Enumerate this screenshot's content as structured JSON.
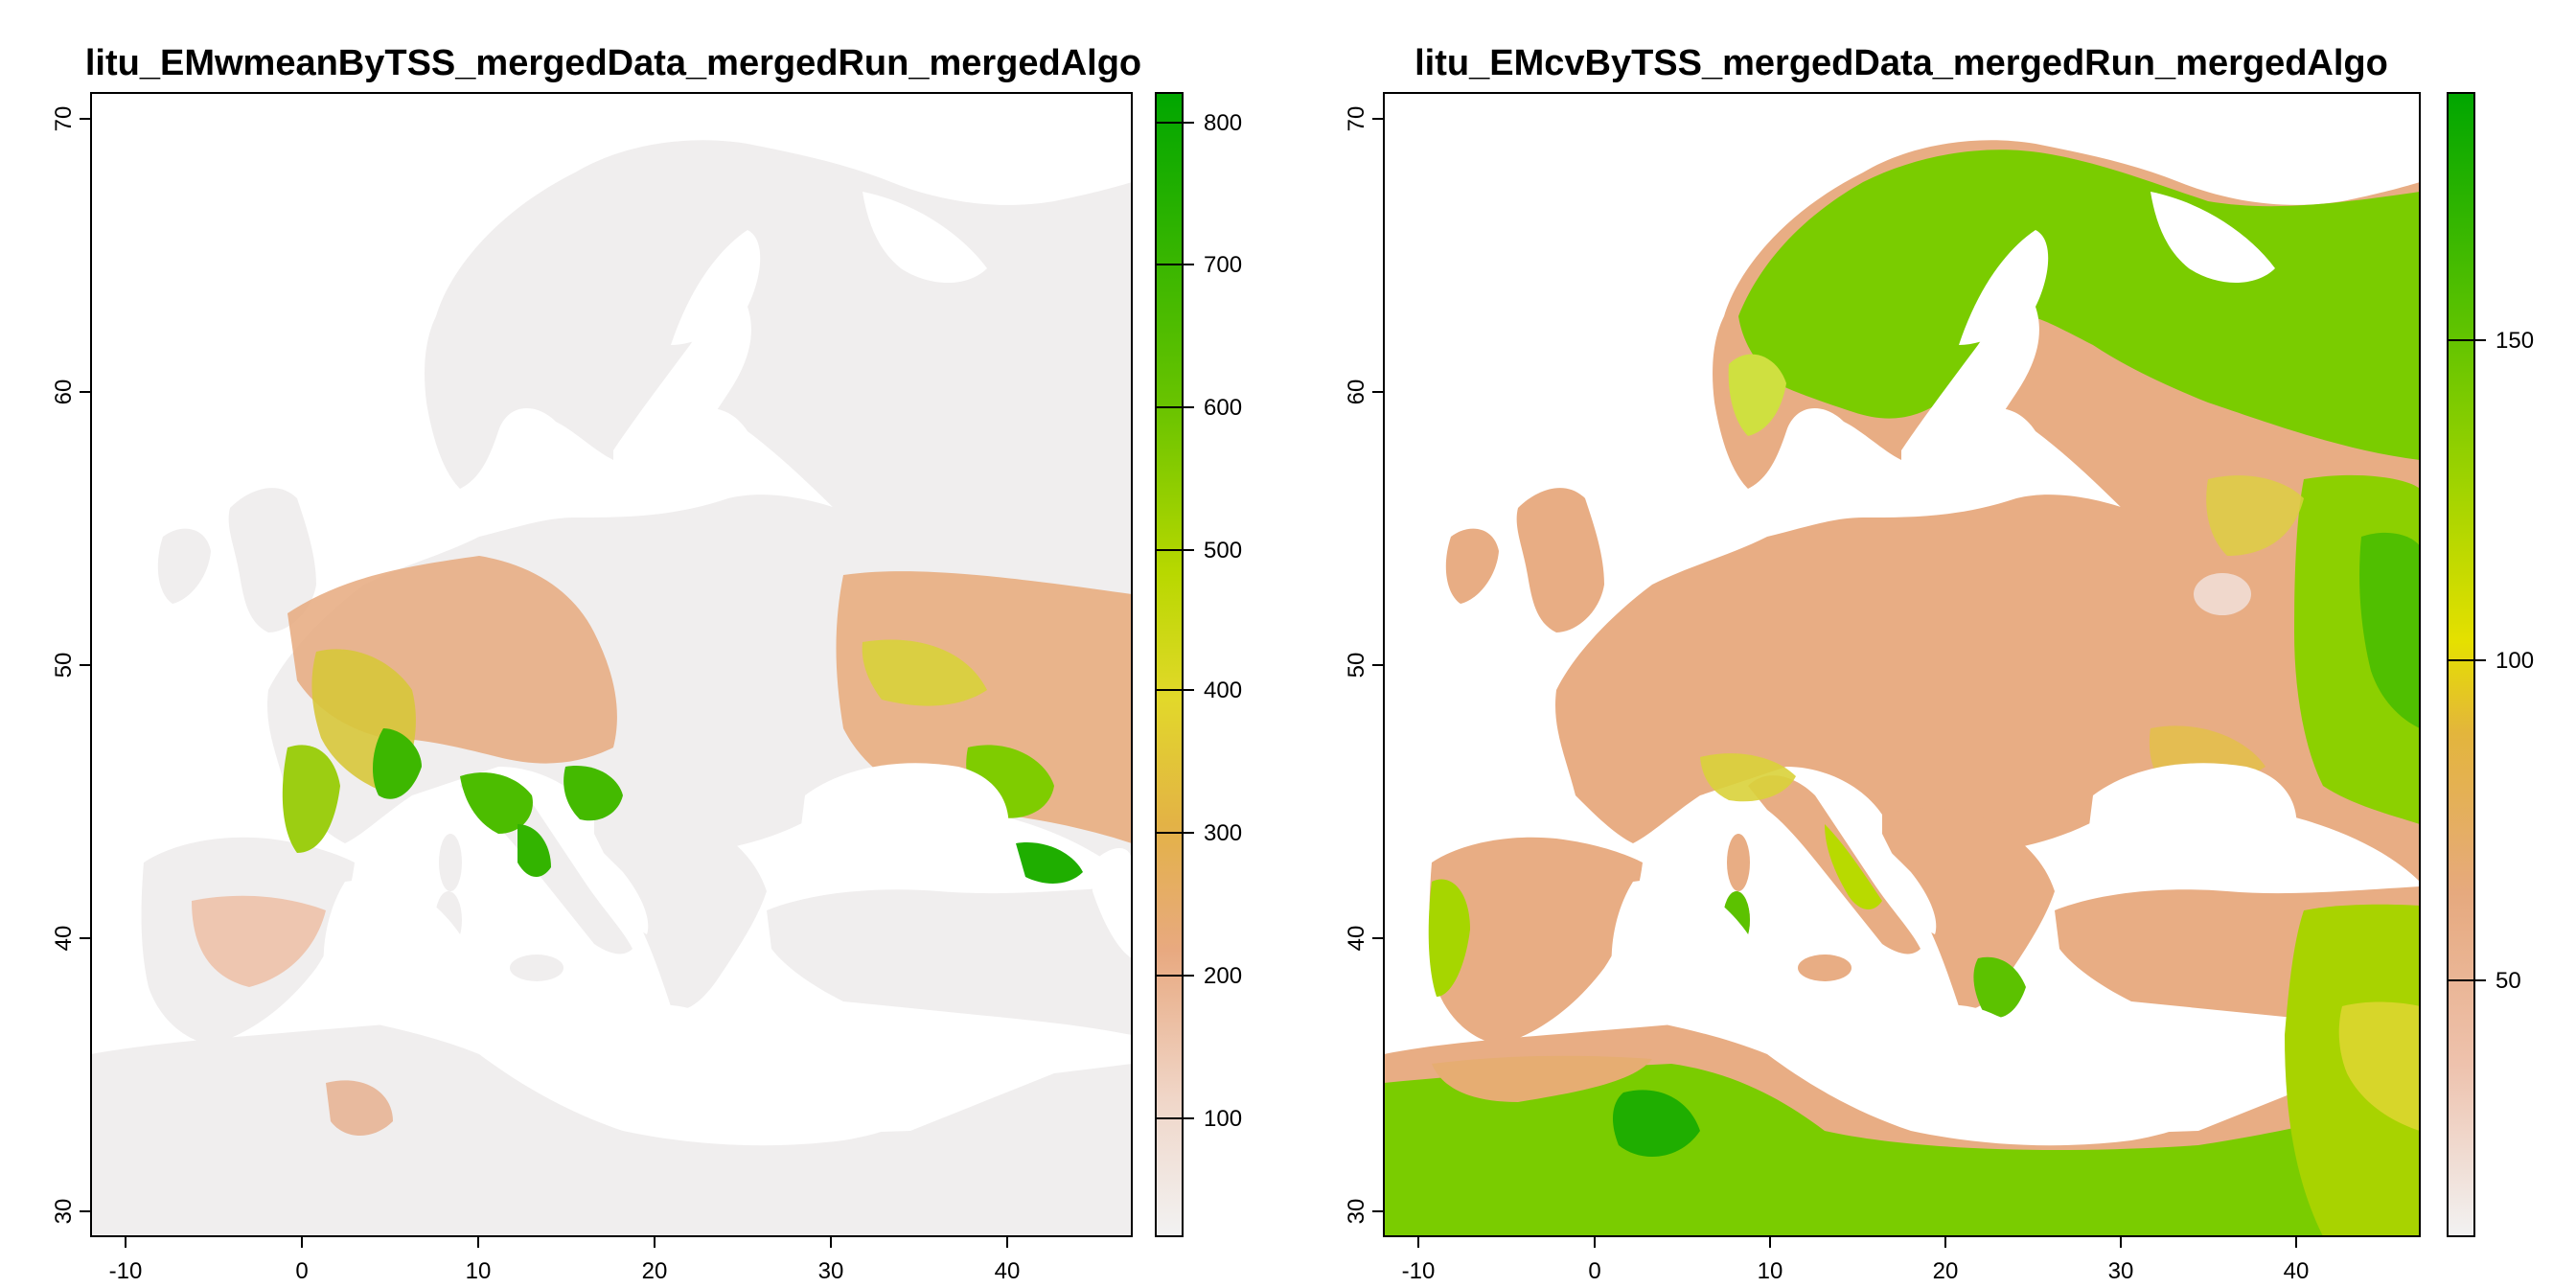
{
  "panels": [
    {
      "title": "litu_EMwmeanByTSS_mergedData_mergedRun_mergedAlgo",
      "x_ticks": [
        "-10",
        "0",
        "10",
        "20",
        "30",
        "40"
      ],
      "y_ticks": [
        "30",
        "40",
        "50",
        "60",
        "70"
      ],
      "legend_ticks": [
        "100",
        "200",
        "300",
        "400",
        "500",
        "600",
        "700",
        "800"
      ],
      "legend_range": [
        20,
        820
      ]
    },
    {
      "title": "litu_EMcvByTSS_mergedData_mergedRun_mergedAlgo",
      "x_ticks": [
        "-10",
        "0",
        "10",
        "20",
        "30",
        "40"
      ],
      "y_ticks": [
        "30",
        "40",
        "50",
        "60",
        "70"
      ],
      "legend_ticks": [
        "50",
        "100",
        "150"
      ],
      "legend_range": [
        5,
        190
      ]
    }
  ],
  "map_extent": {
    "lon": [
      -12,
      47
    ],
    "lat": [
      29,
      71
    ]
  },
  "colors": {
    "ramp": [
      "#f2f2f2",
      "#eec5b0",
      "#e6a97e",
      "#e3b94a",
      "#e6e600",
      "#8ad000",
      "#5cc200",
      "#00a600"
    ],
    "land_low": "#f0f0f0",
    "water": "#ffffff",
    "frame": "#000000"
  }
}
